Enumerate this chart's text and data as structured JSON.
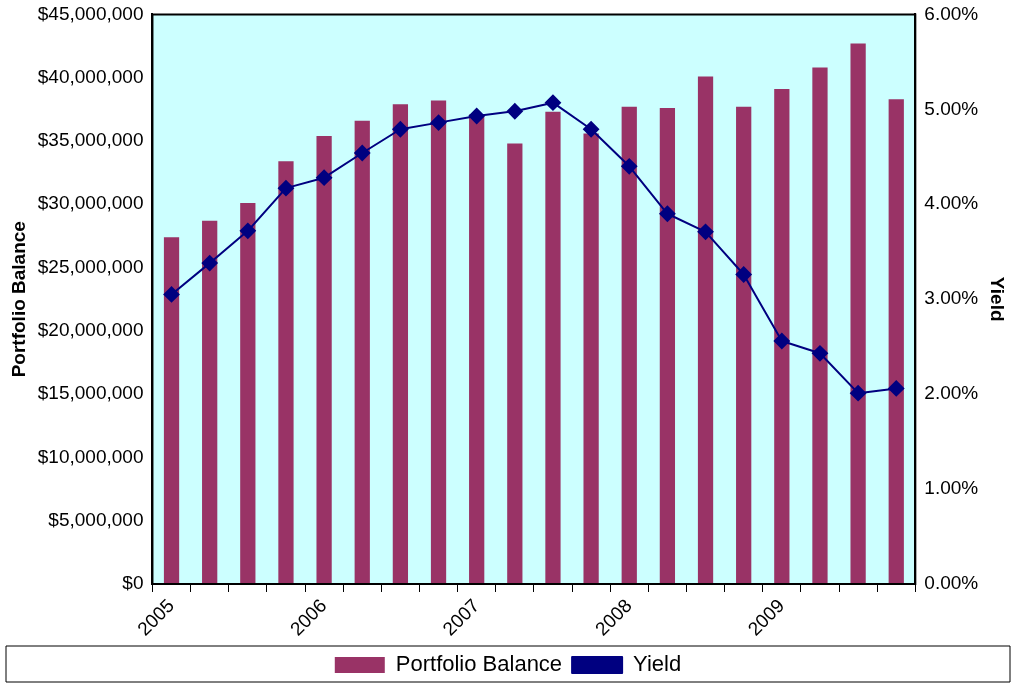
{
  "chart_data": {
    "type": "bar",
    "ylabel": "Portfolio Balance",
    "y2label": "Yield",
    "categories": [
      "2005",
      null,
      null,
      null,
      "2006",
      null,
      null,
      null,
      "2007",
      null,
      null,
      null,
      "2008",
      null,
      null,
      null,
      "2009",
      null,
      null,
      null
    ],
    "series": [
      {
        "name": "Portfolio Balance",
        "color": "#993366",
        "values": [
          27400000,
          28700000,
          30100000,
          33400000,
          35400000,
          36600000,
          37900000,
          38200000,
          37100000,
          34800000,
          37300000,
          35600000,
          37700000,
          37600000,
          40100000,
          37700000,
          39100000,
          40800000,
          42700000,
          38300000
        ]
      },
      {
        "name": "Yield",
        "type": "line",
        "axis": "y2",
        "color": "#000080",
        "marker": "diamond",
        "values": [
          3.05,
          3.38,
          3.72,
          4.17,
          4.28,
          4.54,
          4.79,
          4.86,
          4.93,
          4.98,
          5.07,
          4.79,
          4.4,
          3.9,
          3.71,
          3.26,
          2.56,
          2.43,
          2.01,
          2.06
        ]
      }
    ],
    "ylim": [
      0,
      45000000
    ],
    "yticks": [
      {
        "value": 0,
        "label": "$0"
      },
      {
        "value": 5000000,
        "label": "$5,000,000"
      },
      {
        "value": 10000000,
        "label": "$10,000,000"
      },
      {
        "value": 15000000,
        "label": "$15,000,000"
      },
      {
        "value": 20000000,
        "label": "$20,000,000"
      },
      {
        "value": 25000000,
        "label": "$25,000,000"
      },
      {
        "value": 30000000,
        "label": "$30,000,000"
      },
      {
        "value": 35000000,
        "label": "$35,000,000"
      },
      {
        "value": 40000000,
        "label": "$40,000,000"
      },
      {
        "value": 45000000,
        "label": "$45,000,000"
      }
    ],
    "y2lim": [
      0,
      6
    ],
    "y2ticks": [
      {
        "value": 0,
        "label": "0.00%"
      },
      {
        "value": 1,
        "label": "1.00%"
      },
      {
        "value": 2,
        "label": "2.00%"
      },
      {
        "value": 3,
        "label": "3.00%"
      },
      {
        "value": 4,
        "label": "4.00%"
      },
      {
        "value": 5,
        "label": "5.00%"
      },
      {
        "value": 6,
        "label": "6.00%"
      }
    ],
    "grid": false,
    "legend": "bottom"
  }
}
